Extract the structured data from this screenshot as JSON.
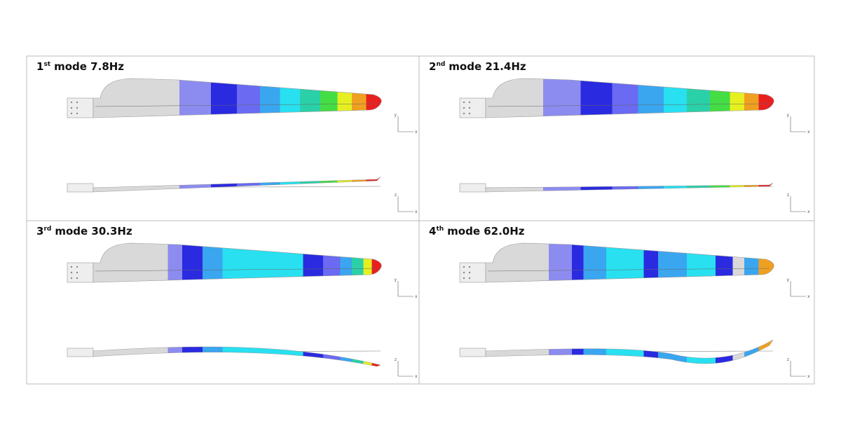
{
  "panels": [
    {
      "number": "1",
      "suffix": "st",
      "label": "mode 7.8Hz",
      "top_axes": [
        "y",
        "x"
      ],
      "side_axes": [
        "z",
        "x"
      ]
    },
    {
      "number": "2",
      "suffix": "nd",
      "label": "mode 21.4Hz",
      "top_axes": [
        "y",
        "x"
      ],
      "side_axes": [
        "z",
        "x"
      ]
    },
    {
      "number": "3",
      "suffix": "rd",
      "label": "mode 30.3Hz",
      "top_axes": [
        "y",
        "x"
      ],
      "side_axes": [
        "z",
        "x"
      ]
    },
    {
      "number": "4",
      "suffix": "th",
      "label": "mode 62.0Hz",
      "top_axes": [
        "y",
        "x"
      ],
      "side_axes": [
        "z",
        "x"
      ]
    }
  ]
}
